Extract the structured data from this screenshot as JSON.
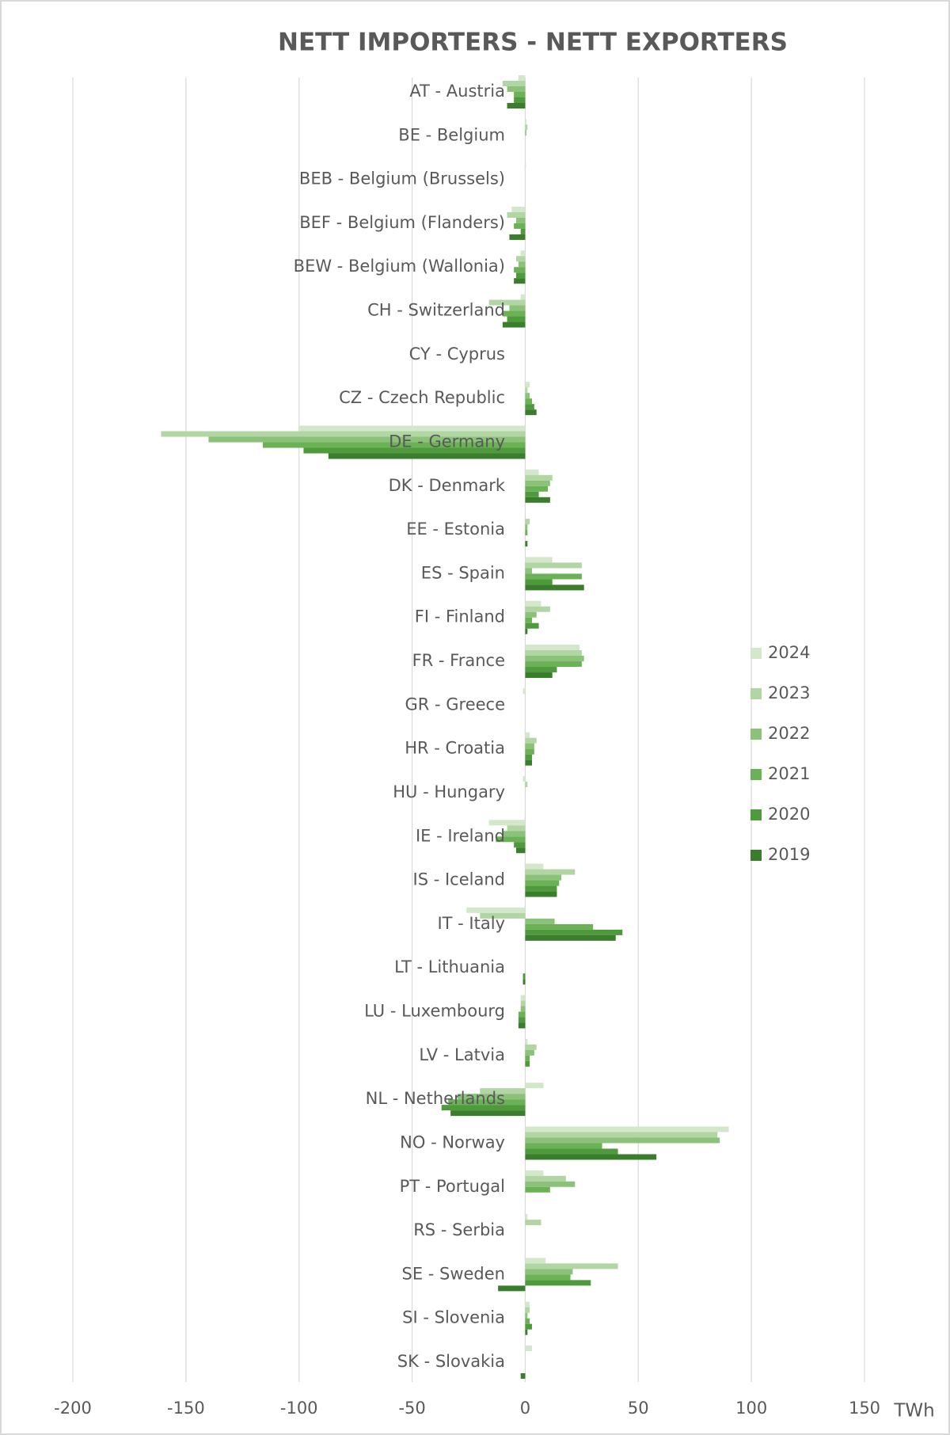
{
  "chart_data": {
    "type": "hbar",
    "title": "NETT IMPORTERS - NETT EXPORTERS",
    "x_label": "TWh",
    "categories": [
      "AT - Austria",
      "BE - Belgium",
      "BEB - Belgium (Brussels)",
      "BEF - Belgium (Flanders)",
      "BEW - Belgium (Wallonia)",
      "CH - Switzerland",
      "CY - Cyprus",
      "CZ - Czech Republic",
      "DE - Germany",
      "DK - Denmark",
      "EE - Estonia",
      "ES - Spain",
      "FI - Finland",
      "FR - France",
      "GR - Greece",
      "HR - Croatia",
      "HU - Hungary",
      "IE - Ireland",
      "IS - Iceland",
      "IT - Italy",
      "LT - Lithuania",
      "LU - Luxembourg",
      "LV - Latvia",
      "NL - Netherlands",
      "NO - Norway",
      "PT - Portugal",
      "RS - Serbia",
      "SE - Sweden",
      "SI - Slovenia",
      "SK - Slovakia"
    ],
    "series": [
      {
        "name": "2024",
        "color": "#d3e7cb",
        "values": [
          -3,
          0.5,
          0.3,
          -6,
          -2,
          -2,
          0,
          2,
          -100,
          6,
          0,
          12,
          7,
          24,
          -1,
          2,
          -1,
          -16,
          8,
          -26,
          0,
          -2,
          1,
          8,
          90,
          8,
          1,
          9,
          2,
          3
        ]
      },
      {
        "name": "2023",
        "color": "#b2d5a4",
        "values": [
          -10,
          1,
          0,
          -8,
          -4,
          -16,
          0,
          1,
          -161,
          12,
          2,
          25,
          11,
          25,
          0,
          5,
          1,
          -8,
          22,
          -20,
          0,
          -2,
          5,
          -20,
          85,
          18,
          7,
          41,
          2,
          0
        ]
      },
      {
        "name": "2022",
        "color": "#8bc178",
        "values": [
          -8,
          0.5,
          0,
          -4,
          -3,
          -7,
          0,
          2,
          -140,
          11,
          1,
          3,
          5,
          26,
          0,
          4,
          0,
          -10,
          16,
          13,
          0,
          -2,
          4,
          -30,
          86,
          22,
          0,
          21,
          1,
          0
        ]
      },
      {
        "name": "2021",
        "color": "#6bb256",
        "values": [
          -5,
          0,
          0,
          -5,
          -5,
          -10,
          0,
          3,
          -116,
          10,
          1,
          25,
          3,
          25,
          0,
          4,
          0,
          -13,
          15,
          30,
          0,
          -3,
          2,
          -34,
          34,
          11,
          0,
          20,
          2,
          0
        ]
      },
      {
        "name": "2020",
        "color": "#4e9a3c",
        "values": [
          -5,
          0,
          0,
          -2,
          -4,
          -8,
          0,
          4,
          -98,
          6,
          0,
          12,
          6,
          14,
          0,
          3,
          0,
          -5,
          14,
          43,
          -1,
          -3,
          2,
          -37,
          41,
          0,
          0,
          29,
          3,
          0
        ]
      },
      {
        "name": "2019",
        "color": "#3a7d2c",
        "values": [
          -8,
          0,
          0,
          -7,
          -5,
          -10,
          0,
          5,
          -87,
          11,
          1,
          26,
          1,
          12,
          0,
          3,
          0,
          -4,
          14,
          40,
          -1,
          -3,
          0,
          -33,
          58,
          0,
          0,
          -12,
          1,
          -2
        ]
      }
    ],
    "xlim": [
      -200,
      150
    ],
    "xticks": [
      -200,
      -150,
      -100,
      -50,
      0,
      50,
      100,
      150
    ],
    "grid": true,
    "legend": "right"
  }
}
